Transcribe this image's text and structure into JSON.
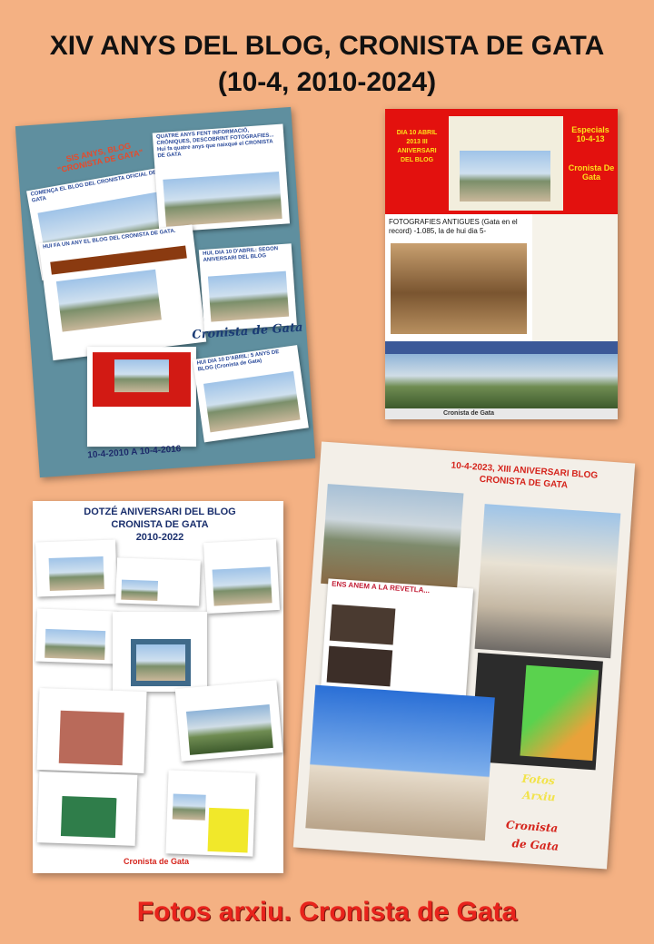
{
  "header": {
    "line1": "XIV ANYS DEL BLOG, CRONISTA DE GATA",
    "line2": "(10-4, 2010-2024)"
  },
  "panel_top_left": {
    "headline": "SIS ANYS, BLOG \"CRONISTA DE GATA\"",
    "card_a": "COMENÇA EL BLOG DEL CRONISTA OFICIAL DE GATA",
    "card_b": "QUATRE ANYS FENT INFORMACIÓ, CRÒNIQUES, DESCOBRINT FOTOGRAFIES... Hui fa quatre anys que naixqué el CRONISTA DE GATA",
    "card_c": "HUI FA UN ANY EL BLOG DEL CRONISTA DE GATA.",
    "card_d": "HUI, DIA 10 D'ABRIL: SEGON ANIVERSARI DEL BLOG",
    "card_e": "HUI DIA 10 D'ABRIL: 5 ANYS DE BLOG (Cronista de Gata)",
    "stamp": "Cronista de Gata",
    "date_range": "10-4-2010 A 10-4-2016"
  },
  "panel_top_right": {
    "banner": "DIA 10 ABRIL 2013 III ANIVERSARI DEL BLOG",
    "side_title": "Especials 10-4-13",
    "side_sub": "Cronista De Gata",
    "caption": "FOTOGRAFIES ANTIGUES (Gata en el record) -1.085, la de hui dia 5-",
    "footer": "Cronista de Gata"
  },
  "panel_bottom_left": {
    "title1": "DOTZÉ ANIVERSARI DEL BLOG",
    "title2": "CRONISTA DE GATA",
    "title3": "2010-2022",
    "signature": "Cronista de Gata"
  },
  "panel_bottom_right": {
    "title": "10-4-2023, XIII ANIVERSARI BLOG CRONISTA DE GATA",
    "article_title": "ENS ANEM A LA REVETLA...",
    "label1": "Fotos",
    "label2": "Arxiu",
    "signature1": "Cronista",
    "signature2": "de Gata"
  },
  "footer": {
    "text": "Fotos arxiu. Cronista de Gata"
  },
  "colors": {
    "background": "#F4B183",
    "title": "#111111",
    "footer": "#E8231C",
    "accent_red": "#E3110E",
    "accent_blue": "#2A4A9A"
  }
}
